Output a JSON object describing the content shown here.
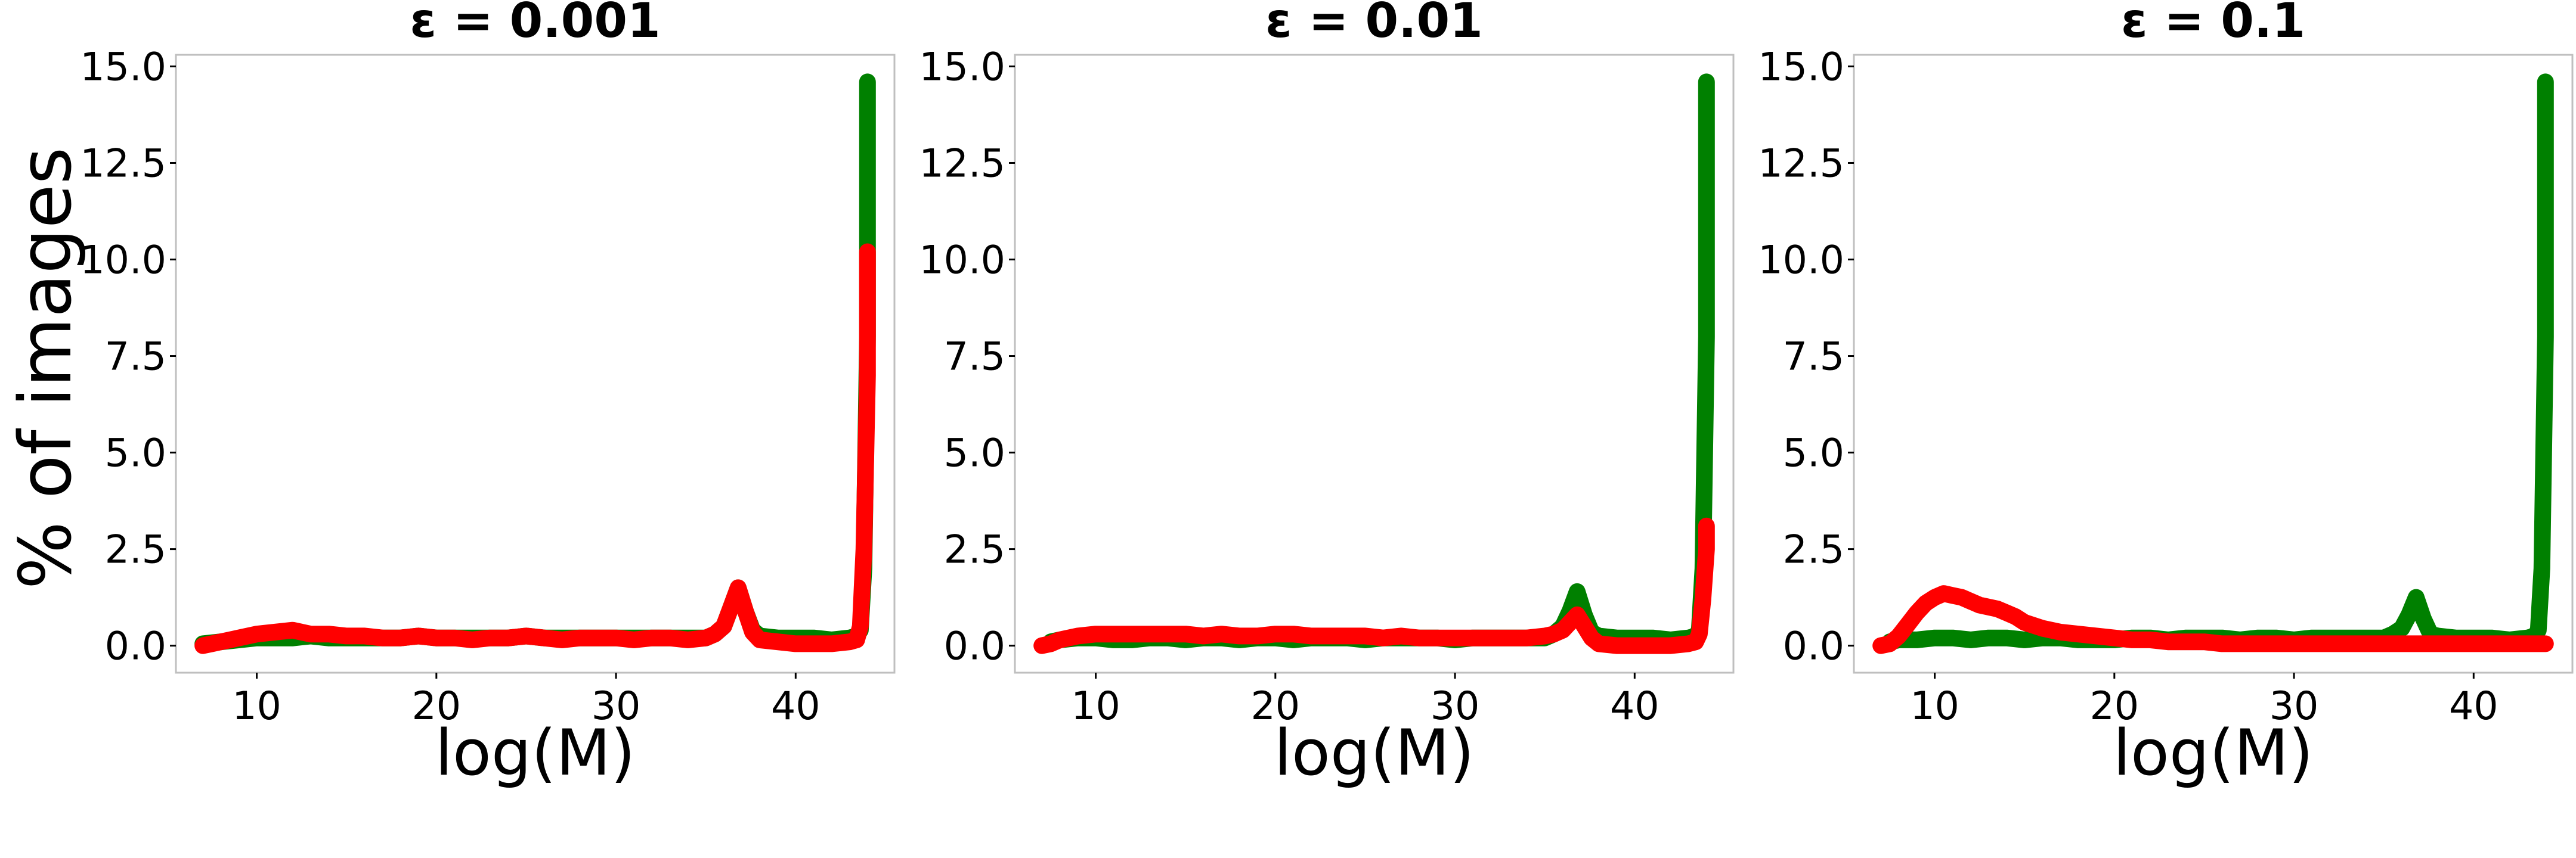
{
  "figure": {
    "ylabel": "% of images"
  },
  "chart_data": [
    {
      "type": "line",
      "title": "ε = 0.001",
      "xlabel": "log(M)",
      "ylabel": "% of images",
      "xlim": [
        5.5,
        45.5
      ],
      "ylim": [
        -0.7,
        15.3
      ],
      "xticks": [
        10,
        20,
        30,
        40
      ],
      "xtick_labels": [
        "10",
        "20",
        "30",
        "40"
      ],
      "yticks": [
        0,
        2.5,
        5,
        7.5,
        10,
        12.5,
        15
      ],
      "ytick_labels": [
        "0.0",
        "2.5",
        "5.0",
        "7.5",
        "10.0",
        "12.5",
        "15.0"
      ],
      "grid": false,
      "series": [
        {
          "color": "#008000",
          "x": [
            7,
            8,
            9,
            10,
            11,
            12,
            13,
            14,
            15,
            16,
            17,
            18,
            19,
            20,
            21,
            22,
            23,
            24,
            25,
            26,
            27,
            28,
            29,
            30,
            31,
            32,
            33,
            34,
            35,
            35.5,
            36,
            36.4,
            36.8,
            37.2,
            37.6,
            38,
            39,
            40,
            41,
            42,
            43,
            43.4,
            43.6,
            43.8,
            44,
            44
          ],
          "y": [
            0.05,
            0.1,
            0.15,
            0.2,
            0.2,
            0.2,
            0.25,
            0.2,
            0.2,
            0.2,
            0.2,
            0.2,
            0.25,
            0.2,
            0.2,
            0.2,
            0.2,
            0.2,
            0.25,
            0.2,
            0.2,
            0.2,
            0.2,
            0.2,
            0.2,
            0.2,
            0.2,
            0.2,
            0.2,
            0.3,
            0.5,
            1.0,
            1.5,
            0.9,
            0.4,
            0.25,
            0.2,
            0.2,
            0.2,
            0.15,
            0.2,
            0.25,
            0.4,
            2.0,
            8.0,
            14.6
          ]
        },
        {
          "color": "#ff0000",
          "x": [
            7,
            7.5,
            8,
            9,
            10,
            11,
            12,
            13,
            14,
            15,
            16,
            17,
            18,
            19,
            20,
            21,
            22,
            23,
            24,
            25,
            26,
            27,
            28,
            29,
            30,
            31,
            32,
            33,
            34,
            35,
            35.5,
            36,
            36.4,
            36.8,
            37.2,
            37.6,
            38,
            39,
            40,
            41,
            42,
            43,
            43.4,
            43.6,
            43.8,
            44,
            44
          ],
          "y": [
            0.0,
            0.05,
            0.1,
            0.2,
            0.3,
            0.35,
            0.4,
            0.3,
            0.3,
            0.25,
            0.25,
            0.2,
            0.2,
            0.25,
            0.2,
            0.2,
            0.15,
            0.2,
            0.2,
            0.25,
            0.2,
            0.15,
            0.2,
            0.2,
            0.2,
            0.15,
            0.2,
            0.2,
            0.15,
            0.2,
            0.3,
            0.5,
            1.0,
            1.5,
            0.9,
            0.35,
            0.15,
            0.1,
            0.05,
            0.05,
            0.05,
            0.1,
            0.15,
            0.5,
            2.5,
            7.0,
            10.2
          ]
        }
      ]
    },
    {
      "type": "line",
      "title": "ε = 0.01",
      "xlabel": "log(M)",
      "ylabel": "",
      "xlim": [
        5.5,
        45.5
      ],
      "ylim": [
        -0.7,
        15.3
      ],
      "xticks": [
        10,
        20,
        30,
        40
      ],
      "xtick_labels": [
        "10",
        "20",
        "30",
        "40"
      ],
      "yticks": [
        0,
        2.5,
        5,
        7.5,
        10,
        12.5,
        15
      ],
      "ytick_labels": [
        "0.0",
        "2.5",
        "5.0",
        "7.5",
        "10.0",
        "12.5",
        "15.0"
      ],
      "grid": false,
      "series": [
        {
          "color": "#008000",
          "x": [
            7.5,
            8,
            9,
            10,
            11,
            12,
            13,
            14,
            15,
            16,
            17,
            18,
            19,
            20,
            21,
            22,
            23,
            24,
            25,
            26,
            27,
            28,
            29,
            30,
            31,
            32,
            33,
            34,
            35,
            35.5,
            36,
            36.4,
            36.8,
            37.2,
            37.6,
            38,
            39,
            40,
            41,
            42,
            43,
            43.4,
            43.6,
            43.8,
            44,
            44
          ],
          "y": [
            0.1,
            0.15,
            0.2,
            0.2,
            0.15,
            0.15,
            0.2,
            0.2,
            0.15,
            0.2,
            0.2,
            0.15,
            0.2,
            0.2,
            0.15,
            0.2,
            0.2,
            0.2,
            0.15,
            0.2,
            0.2,
            0.2,
            0.2,
            0.15,
            0.2,
            0.2,
            0.2,
            0.2,
            0.2,
            0.3,
            0.5,
            0.9,
            1.4,
            0.8,
            0.35,
            0.25,
            0.2,
            0.2,
            0.2,
            0.15,
            0.2,
            0.25,
            0.4,
            2.0,
            8.0,
            14.6
          ]
        },
        {
          "color": "#ff0000",
          "x": [
            7,
            7.5,
            8,
            9,
            10,
            11,
            12,
            13,
            14,
            15,
            16,
            17,
            18,
            19,
            20,
            21,
            22,
            23,
            24,
            25,
            26,
            27,
            28,
            29,
            30,
            31,
            32,
            33,
            34,
            35,
            35.5,
            36,
            36.4,
            36.8,
            37.2,
            37.6,
            38,
            39,
            40,
            41,
            42,
            43,
            43.4,
            43.6,
            43.8,
            44,
            44
          ],
          "y": [
            0.0,
            0.05,
            0.15,
            0.25,
            0.3,
            0.3,
            0.3,
            0.3,
            0.3,
            0.3,
            0.25,
            0.3,
            0.25,
            0.25,
            0.3,
            0.3,
            0.25,
            0.25,
            0.25,
            0.25,
            0.2,
            0.25,
            0.2,
            0.2,
            0.2,
            0.2,
            0.2,
            0.2,
            0.2,
            0.25,
            0.3,
            0.4,
            0.6,
            0.8,
            0.5,
            0.2,
            0.05,
            0.0,
            0.0,
            0.0,
            0.0,
            0.05,
            0.1,
            0.3,
            1.2,
            2.5,
            3.1
          ]
        }
      ]
    },
    {
      "type": "line",
      "title": "ε = 0.1",
      "xlabel": "log(M)",
      "ylabel": "",
      "xlim": [
        5.5,
        45.5
      ],
      "ylim": [
        -0.7,
        15.3
      ],
      "xticks": [
        10,
        20,
        30,
        40
      ],
      "xtick_labels": [
        "10",
        "20",
        "30",
        "40"
      ],
      "yticks": [
        0,
        2.5,
        5,
        7.5,
        10,
        12.5,
        15
      ],
      "ytick_labels": [
        "0.0",
        "2.5",
        "5.0",
        "7.5",
        "10.0",
        "12.5",
        "15.0"
      ],
      "grid": false,
      "series": [
        {
          "color": "#008000",
          "x": [
            7.5,
            8,
            9,
            10,
            11,
            12,
            13,
            14,
            15,
            16,
            17,
            18,
            19,
            20,
            21,
            22,
            23,
            24,
            25,
            26,
            27,
            28,
            29,
            30,
            31,
            32,
            33,
            34,
            35,
            35.5,
            36,
            36.4,
            36.8,
            37.2,
            37.6,
            38,
            39,
            40,
            41,
            42,
            43,
            43.4,
            43.6,
            43.8,
            44,
            44
          ],
          "y": [
            0.1,
            0.15,
            0.15,
            0.2,
            0.2,
            0.15,
            0.2,
            0.2,
            0.15,
            0.2,
            0.2,
            0.15,
            0.15,
            0.15,
            0.2,
            0.2,
            0.15,
            0.2,
            0.2,
            0.2,
            0.15,
            0.2,
            0.2,
            0.15,
            0.2,
            0.2,
            0.2,
            0.2,
            0.2,
            0.3,
            0.45,
            0.8,
            1.25,
            0.7,
            0.3,
            0.25,
            0.2,
            0.2,
            0.2,
            0.15,
            0.2,
            0.25,
            0.4,
            2.0,
            8.0,
            14.6
          ]
        },
        {
          "color": "#ff0000",
          "x": [
            7,
            7.5,
            8,
            8.5,
            9,
            9.5,
            10,
            10.5,
            11,
            11.5,
            12,
            12.5,
            13,
            13.5,
            14,
            14.5,
            15,
            16,
            17,
            18,
            19,
            20,
            21,
            22,
            23,
            24,
            25,
            26,
            27,
            28,
            29,
            30,
            31,
            32,
            33,
            34,
            35,
            36,
            37,
            38,
            39,
            40,
            41,
            42,
            43,
            43.5,
            44
          ],
          "y": [
            0.0,
            0.05,
            0.25,
            0.55,
            0.85,
            1.1,
            1.25,
            1.35,
            1.3,
            1.25,
            1.15,
            1.05,
            1.0,
            0.95,
            0.85,
            0.75,
            0.6,
            0.45,
            0.35,
            0.3,
            0.25,
            0.2,
            0.15,
            0.15,
            0.1,
            0.1,
            0.1,
            0.05,
            0.05,
            0.05,
            0.05,
            0.05,
            0.05,
            0.05,
            0.05,
            0.05,
            0.05,
            0.05,
            0.05,
            0.05,
            0.05,
            0.05,
            0.05,
            0.05,
            0.05,
            0.05,
            0.05
          ]
        }
      ]
    }
  ]
}
